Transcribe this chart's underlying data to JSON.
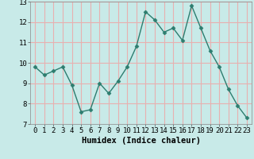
{
  "x": [
    0,
    1,
    2,
    3,
    4,
    5,
    6,
    7,
    8,
    9,
    10,
    11,
    12,
    13,
    14,
    15,
    16,
    17,
    18,
    19,
    20,
    21,
    22,
    23
  ],
  "y": [
    9.8,
    9.4,
    9.6,
    9.8,
    8.9,
    7.6,
    7.7,
    9.0,
    8.5,
    9.1,
    9.8,
    10.8,
    12.5,
    12.1,
    11.5,
    11.7,
    11.1,
    12.8,
    11.7,
    10.6,
    9.8,
    8.7,
    7.9,
    7.3
  ],
  "line_color": "#2d7d6f",
  "marker": "D",
  "marker_size": 2.5,
  "bg_color": "#c8eae8",
  "grid_color": "#e8b0b0",
  "xlabel": "Humidex (Indice chaleur)",
  "xlim": [
    -0.5,
    23.5
  ],
  "ylim": [
    7,
    13
  ],
  "yticks": [
    7,
    8,
    9,
    10,
    11,
    12,
    13
  ],
  "xticks": [
    0,
    1,
    2,
    3,
    4,
    5,
    6,
    7,
    8,
    9,
    10,
    11,
    12,
    13,
    14,
    15,
    16,
    17,
    18,
    19,
    20,
    21,
    22,
    23
  ],
  "tick_fontsize": 6.5,
  "xlabel_fontsize": 7.5
}
